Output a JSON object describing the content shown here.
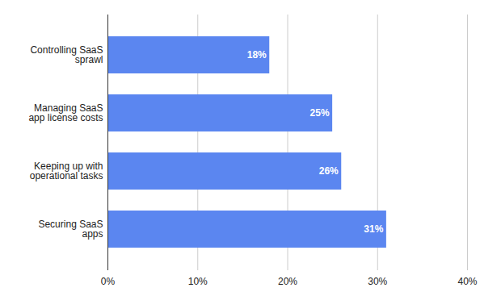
{
  "chart_data": {
    "type": "bar",
    "orientation": "horizontal",
    "categories": [
      "Controlling SaaS sprawl",
      "Managing SaaS app license costs",
      "Keeping up with operational tasks",
      "Securing SaaS apps"
    ],
    "values": [
      18,
      25,
      26,
      31
    ],
    "value_labels": [
      "18%",
      "25%",
      "26%",
      "31%"
    ],
    "data_labels": true,
    "color": "#5b86f0",
    "xlim": [
      0,
      40
    ],
    "xticks": [
      {
        "value": 0,
        "label": "0%"
      },
      {
        "value": 10,
        "label": "10%"
      },
      {
        "value": 20,
        "label": "20%"
      },
      {
        "value": 30,
        "label": "30%"
      },
      {
        "value": 40,
        "label": "40%"
      }
    ],
    "grid": true
  }
}
